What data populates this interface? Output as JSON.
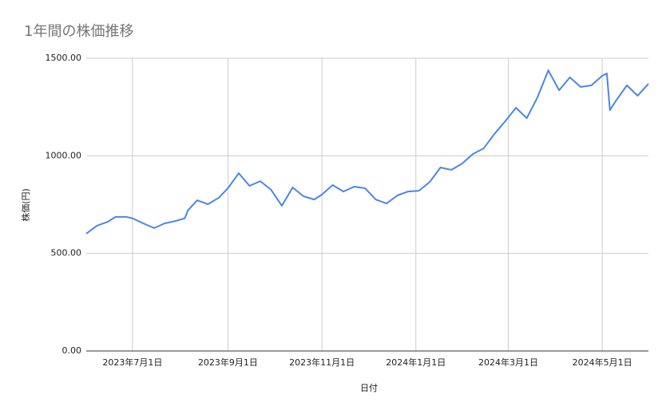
{
  "chart_data": {
    "type": "line",
    "title": "1年間の株価推移",
    "x_label": "日付",
    "y_label": "株価(円)",
    "x": [
      "2023-06-01",
      "2023-06-08",
      "2023-06-15",
      "2023-06-20",
      "2023-06-27",
      "2023-07-01",
      "2023-07-08",
      "2023-07-15",
      "2023-07-22",
      "2023-07-29",
      "2023-08-04",
      "2023-08-06",
      "2023-08-12",
      "2023-08-19",
      "2023-08-26",
      "2023-09-01",
      "2023-09-08",
      "2023-09-15",
      "2023-09-22",
      "2023-09-29",
      "2023-10-06",
      "2023-10-13",
      "2023-10-20",
      "2023-10-27",
      "2023-11-01",
      "2023-11-08",
      "2023-11-15",
      "2023-11-22",
      "2023-11-29",
      "2023-12-06",
      "2023-12-13",
      "2023-12-20",
      "2023-12-27",
      "2024-01-03",
      "2024-01-10",
      "2024-01-17",
      "2024-01-24",
      "2024-01-31",
      "2024-02-07",
      "2024-02-14",
      "2024-02-21",
      "2024-02-28",
      "2024-03-06",
      "2024-03-13",
      "2024-03-20",
      "2024-03-27",
      "2024-04-03",
      "2024-04-10",
      "2024-04-17",
      "2024-04-24",
      "2024-05-01",
      "2024-05-04",
      "2024-05-06",
      "2024-05-10",
      "2024-05-17",
      "2024-05-24",
      "2024-05-31"
    ],
    "series": [
      {
        "name": "株価",
        "color": "#4a86e8",
        "values": [
          601,
          642,
          662,
          687,
          687,
          680,
          654,
          630,
          654,
          666,
          680,
          720,
          772,
          752,
          785,
          834,
          911,
          846,
          870,
          826,
          744,
          838,
          793,
          776,
          801,
          850,
          817,
          842,
          834,
          776,
          756,
          797,
          817,
          821,
          866,
          940,
          928,
          960,
          1009,
          1038,
          1112,
          1177,
          1246,
          1193,
          1300,
          1438,
          1336,
          1402,
          1353,
          1361,
          1410,
          1422,
          1234,
          1283,
          1361,
          1308,
          1369
        ]
      }
    ],
    "xlim": [
      "2023-06-01",
      "2024-05-31"
    ],
    "xticks": [
      {
        "value": "2023-07-01",
        "label": "2023年7月1日"
      },
      {
        "value": "2023-09-01",
        "label": "2023年9月1日"
      },
      {
        "value": "2023-11-01",
        "label": "2023年11月1日"
      },
      {
        "value": "2024-01-01",
        "label": "2024年1月1日"
      },
      {
        "value": "2024-03-01",
        "label": "2024年3月1日"
      },
      {
        "value": "2024-05-01",
        "label": "2024年5月1日"
      }
    ],
    "ylim": [
      0,
      1500
    ],
    "yticks": [
      {
        "value": 0,
        "label": "0.00"
      },
      {
        "value": 500,
        "label": "500.00"
      },
      {
        "value": 1000,
        "label": "1000.00"
      },
      {
        "value": 1500,
        "label": "1500.00"
      }
    ],
    "grid": true
  }
}
